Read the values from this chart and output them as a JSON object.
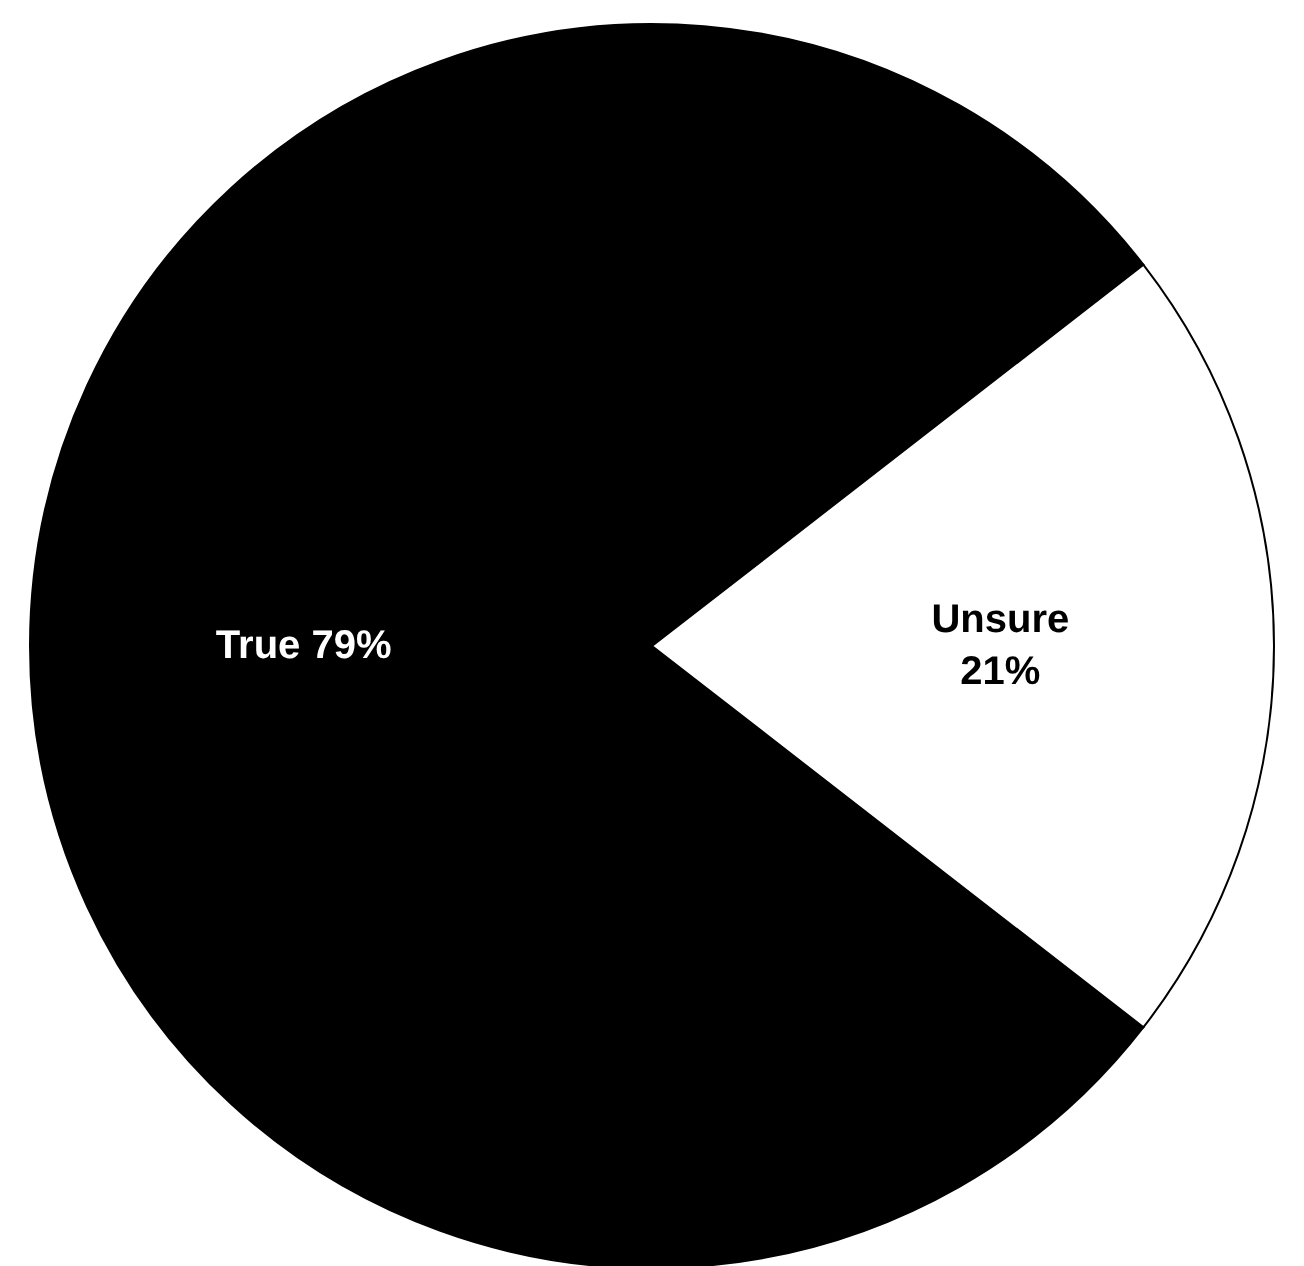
{
  "chart_data": {
    "type": "pie",
    "categories": [
      "True",
      "Unsure"
    ],
    "values": [
      79,
      21
    ],
    "colors": [
      "#000000",
      "#ffffff"
    ],
    "value_labels": [
      "79%",
      "21%"
    ],
    "legend": false
  }
}
